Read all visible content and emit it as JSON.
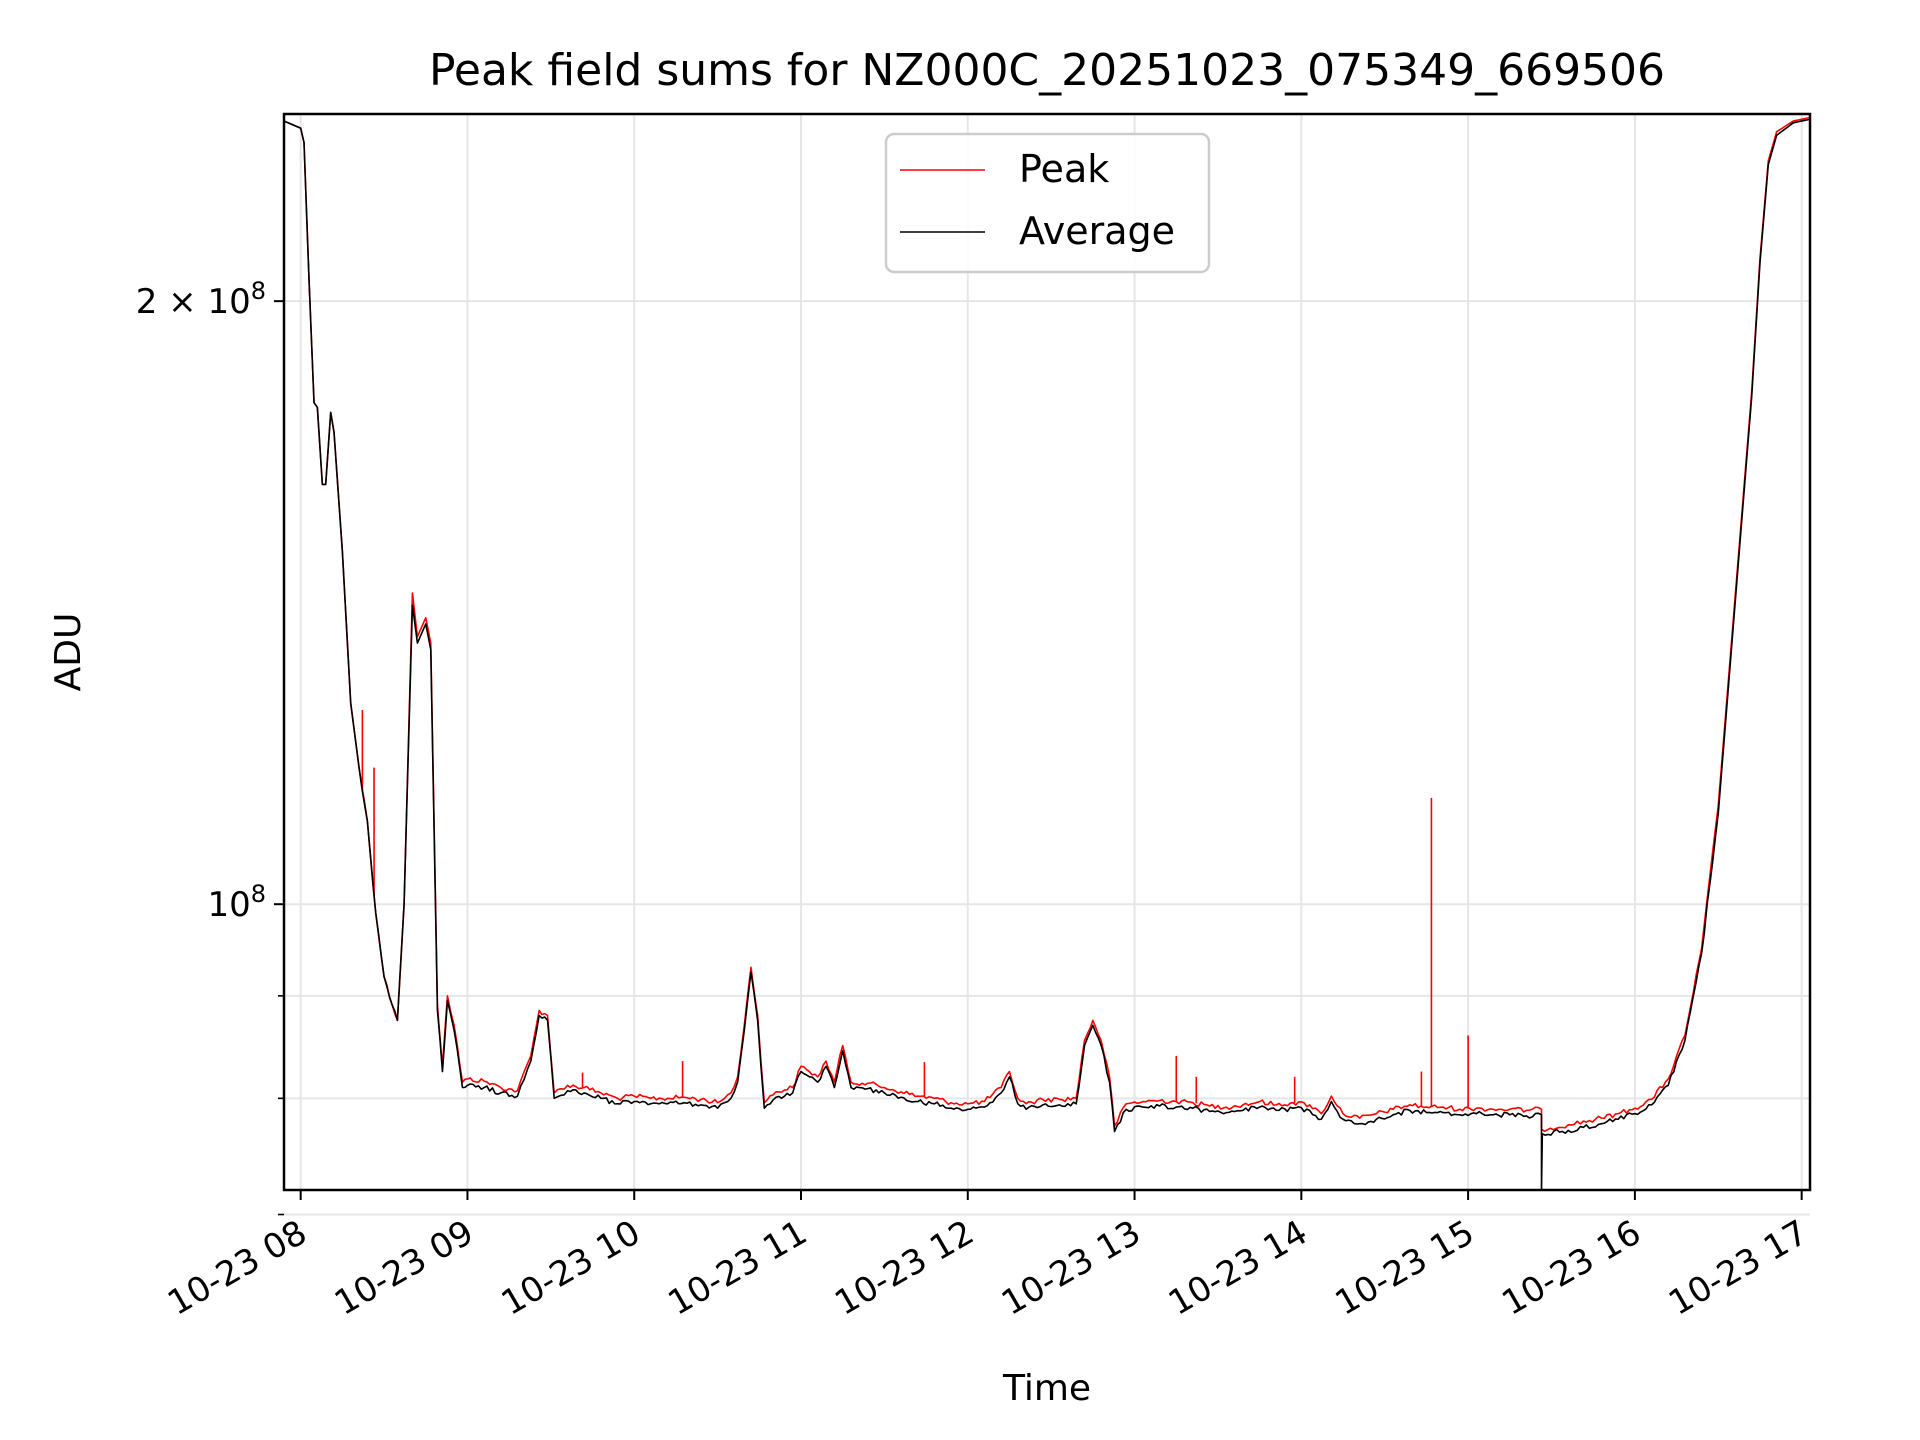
{
  "chart_data": {
    "type": "line",
    "title": "Peak field sums for NZ000C_20251023_075349_669506",
    "xlabel": "Time",
    "ylabel": "ADU",
    "yscale": "log",
    "ylim": [
      72000000,
      248000000
    ],
    "xlim": [
      7.9,
      17.05
    ],
    "grid": true,
    "legend_position": "top-center",
    "x_units": "hours on 2025-10-23",
    "x_ticks": [
      {
        "value": 8,
        "label": "10-23 08"
      },
      {
        "value": 9,
        "label": "10-23 09"
      },
      {
        "value": 10,
        "label": "10-23 10"
      },
      {
        "value": 11,
        "label": "10-23 11"
      },
      {
        "value": 12,
        "label": "10-23 12"
      },
      {
        "value": 13,
        "label": "10-23 13"
      },
      {
        "value": 14,
        "label": "10-23 14"
      },
      {
        "value": 15,
        "label": "10-23 15"
      },
      {
        "value": 16,
        "label": "10-23 16"
      },
      {
        "value": 17,
        "label": "10-23 17"
      }
    ],
    "y_major_ticks": [
      {
        "value": 100000000,
        "mantissa": "",
        "exp": "8"
      },
      {
        "value": 200000000,
        "mantissa": "2 × ",
        "exp": "8"
      }
    ],
    "y_minor_ticks": [
      70000000,
      80000000,
      90000000
    ],
    "series": [
      {
        "name": "Peak",
        "color": "#ff0000",
        "points": [
          [
            7.9,
            246000000
          ],
          [
            8.0,
            244000000
          ],
          [
            8.02,
            240000000
          ],
          [
            8.05,
            205000000
          ],
          [
            8.08,
            178000000
          ],
          [
            8.1,
            177000000
          ],
          [
            8.13,
            162000000
          ],
          [
            8.15,
            162000000
          ],
          [
            8.18,
            176000000
          ],
          [
            8.2,
            172000000
          ],
          [
            8.25,
            150000000
          ],
          [
            8.3,
            126000000
          ],
          [
            8.35,
            117000000
          ],
          [
            8.4,
            110000000
          ],
          [
            8.45,
            99000000
          ],
          [
            8.5,
            92000000
          ],
          [
            8.55,
            89000000
          ],
          [
            8.58,
            87500000
          ],
          [
            8.62,
            100000000
          ],
          [
            8.67,
            143000000
          ],
          [
            8.7,
            136000000
          ],
          [
            8.75,
            139000000
          ],
          [
            8.78,
            135000000
          ],
          [
            8.82,
            89000000
          ],
          [
            8.85,
            83000000
          ],
          [
            8.88,
            90000000
          ],
          [
            8.92,
            87000000
          ],
          [
            8.97,
            81500000
          ],
          [
            9.0,
            81800000
          ],
          [
            9.1,
            81600000
          ],
          [
            9.2,
            81000000
          ],
          [
            9.3,
            80700000
          ],
          [
            9.38,
            84000000
          ],
          [
            9.43,
            88500000
          ],
          [
            9.48,
            88000000
          ],
          [
            9.52,
            80500000
          ],
          [
            9.6,
            81200000
          ],
          [
            9.7,
            81000000
          ],
          [
            9.8,
            80500000
          ],
          [
            9.9,
            80000000
          ],
          [
            10.0,
            80200000
          ],
          [
            10.1,
            80000000
          ],
          [
            10.2,
            80000000
          ],
          [
            10.3,
            80100000
          ],
          [
            10.4,
            79900000
          ],
          [
            10.5,
            79600000
          ],
          [
            10.58,
            80500000
          ],
          [
            10.62,
            82000000
          ],
          [
            10.66,
            87000000
          ],
          [
            10.7,
            93000000
          ],
          [
            10.74,
            88000000
          ],
          [
            10.78,
            79600000
          ],
          [
            10.85,
            80600000
          ],
          [
            10.95,
            81000000
          ],
          [
            11.0,
            83000000
          ],
          [
            11.05,
            82500000
          ],
          [
            11.1,
            82000000
          ],
          [
            11.15,
            83500000
          ],
          [
            11.2,
            81500000
          ],
          [
            11.25,
            85000000
          ],
          [
            11.3,
            81500000
          ],
          [
            11.4,
            81400000
          ],
          [
            11.5,
            81000000
          ],
          [
            11.6,
            80600000
          ],
          [
            11.7,
            80200000
          ],
          [
            11.8,
            80000000
          ],
          [
            11.9,
            79600000
          ],
          [
            12.0,
            79500000
          ],
          [
            12.1,
            79700000
          ],
          [
            12.2,
            81000000
          ],
          [
            12.25,
            82500000
          ],
          [
            12.3,
            80000000
          ],
          [
            12.35,
            79500000
          ],
          [
            12.45,
            79900000
          ],
          [
            12.55,
            79900000
          ],
          [
            12.65,
            80000000
          ],
          [
            12.7,
            85500000
          ],
          [
            12.75,
            87500000
          ],
          [
            12.8,
            85500000
          ],
          [
            12.85,
            82000000
          ],
          [
            12.88,
            77500000
          ],
          [
            12.95,
            79500000
          ],
          [
            13.05,
            79700000
          ],
          [
            13.15,
            79800000
          ],
          [
            13.25,
            79700000
          ],
          [
            13.35,
            79600000
          ],
          [
            13.45,
            79300000
          ],
          [
            13.55,
            79200000
          ],
          [
            13.65,
            79400000
          ],
          [
            13.75,
            79700000
          ],
          [
            13.85,
            79400000
          ],
          [
            13.95,
            79600000
          ],
          [
            14.05,
            79400000
          ],
          [
            14.12,
            78600000
          ],
          [
            14.18,
            80200000
          ],
          [
            14.25,
            78600000
          ],
          [
            14.35,
            78200000
          ],
          [
            14.45,
            78600000
          ],
          [
            14.55,
            79000000
          ],
          [
            14.65,
            79400000
          ],
          [
            14.75,
            79200000
          ],
          [
            14.85,
            79200000
          ],
          [
            14.95,
            79000000
          ],
          [
            15.05,
            79100000
          ],
          [
            15.15,
            79000000
          ],
          [
            15.25,
            79000000
          ],
          [
            15.35,
            78900000
          ],
          [
            15.44,
            79000000
          ],
          [
            15.44,
            77200000
          ],
          [
            15.6,
            77600000
          ],
          [
            15.8,
            78200000
          ],
          [
            15.9,
            78600000
          ],
          [
            16.0,
            79100000
          ],
          [
            16.1,
            79900000
          ],
          [
            16.2,
            81800000
          ],
          [
            16.3,
            86000000
          ],
          [
            16.4,
            95000000
          ],
          [
            16.5,
            112000000
          ],
          [
            16.6,
            142000000
          ],
          [
            16.7,
            180000000
          ],
          [
            16.75,
            210000000
          ],
          [
            16.8,
            235000000
          ],
          [
            16.85,
            243000000
          ],
          [
            16.95,
            246000000
          ],
          [
            17.05,
            247000000
          ]
        ],
        "spikes": [
          [
            8.37,
            125000000
          ],
          [
            8.44,
            117000000
          ],
          [
            9.69,
            82400000
          ],
          [
            10.29,
            83500000
          ],
          [
            11.74,
            83400000
          ],
          [
            13.25,
            84000000
          ],
          [
            13.37,
            82000000
          ],
          [
            13.96,
            82000000
          ],
          [
            14.72,
            82500000
          ],
          [
            14.78,
            113000000
          ],
          [
            15.0,
            86000000
          ]
        ]
      },
      {
        "name": "Average",
        "color": "#000000",
        "points": [
          [
            7.9,
            246000000
          ],
          [
            8.0,
            244000000
          ],
          [
            8.02,
            240000000
          ],
          [
            8.05,
            205000000
          ],
          [
            8.08,
            178000000
          ],
          [
            8.1,
            177000000
          ],
          [
            8.13,
            162000000
          ],
          [
            8.15,
            162000000
          ],
          [
            8.18,
            176000000
          ],
          [
            8.2,
            172000000
          ],
          [
            8.25,
            150000000
          ],
          [
            8.3,
            126000000
          ],
          [
            8.35,
            117000000
          ],
          [
            8.4,
            110000000
          ],
          [
            8.45,
            99000000
          ],
          [
            8.5,
            92000000
          ],
          [
            8.55,
            89000000
          ],
          [
            8.58,
            87500000
          ],
          [
            8.62,
            100000000
          ],
          [
            8.67,
            141000000
          ],
          [
            8.7,
            135000000
          ],
          [
            8.75,
            138000000
          ],
          [
            8.78,
            134000000
          ],
          [
            8.82,
            88500000
          ],
          [
            8.85,
            82500000
          ],
          [
            8.88,
            89500000
          ],
          [
            8.92,
            86500000
          ],
          [
            8.97,
            81000000
          ],
          [
            9.0,
            81200000
          ],
          [
            9.1,
            81000000
          ],
          [
            9.2,
            80500000
          ],
          [
            9.3,
            80200000
          ],
          [
            9.38,
            83500000
          ],
          [
            9.43,
            88000000
          ],
          [
            9.48,
            87500000
          ],
          [
            9.52,
            80000000
          ],
          [
            9.6,
            80700000
          ],
          [
            9.7,
            80500000
          ],
          [
            9.8,
            80000000
          ],
          [
            9.9,
            79500000
          ],
          [
            10.0,
            79700000
          ],
          [
            10.1,
            79500000
          ],
          [
            10.2,
            79500000
          ],
          [
            10.3,
            79600000
          ],
          [
            10.4,
            79400000
          ],
          [
            10.5,
            79100000
          ],
          [
            10.58,
            80000000
          ],
          [
            10.62,
            81500000
          ],
          [
            10.66,
            86500000
          ],
          [
            10.7,
            92500000
          ],
          [
            10.74,
            87500000
          ],
          [
            10.78,
            79100000
          ],
          [
            10.85,
            80100000
          ],
          [
            10.95,
            80500000
          ],
          [
            11.0,
            82500000
          ],
          [
            11.05,
            82000000
          ],
          [
            11.1,
            81500000
          ],
          [
            11.15,
            83000000
          ],
          [
            11.2,
            81000000
          ],
          [
            11.25,
            84500000
          ],
          [
            11.3,
            81000000
          ],
          [
            11.4,
            80900000
          ],
          [
            11.5,
            80500000
          ],
          [
            11.6,
            80100000
          ],
          [
            11.7,
            79700000
          ],
          [
            11.8,
            79500000
          ],
          [
            11.9,
            79100000
          ],
          [
            12.0,
            79000000
          ],
          [
            12.1,
            79200000
          ],
          [
            12.2,
            80500000
          ],
          [
            12.25,
            82000000
          ],
          [
            12.3,
            79500000
          ],
          [
            12.35,
            79000000
          ],
          [
            12.45,
            79400000
          ],
          [
            12.55,
            79400000
          ],
          [
            12.65,
            79500000
          ],
          [
            12.7,
            85000000
          ],
          [
            12.75,
            87000000
          ],
          [
            12.8,
            85000000
          ],
          [
            12.85,
            81500000
          ],
          [
            12.88,
            77000000
          ],
          [
            12.95,
            79000000
          ],
          [
            13.05,
            79200000
          ],
          [
            13.15,
            79300000
          ],
          [
            13.25,
            79200000
          ],
          [
            13.35,
            79100000
          ],
          [
            13.45,
            78800000
          ],
          [
            13.55,
            78700000
          ],
          [
            13.65,
            78900000
          ],
          [
            13.75,
            79200000
          ],
          [
            13.85,
            78900000
          ],
          [
            13.95,
            79100000
          ],
          [
            14.05,
            78900000
          ],
          [
            14.12,
            78100000
          ],
          [
            14.18,
            79700000
          ],
          [
            14.25,
            78100000
          ],
          [
            14.35,
            77700000
          ],
          [
            14.45,
            78100000
          ],
          [
            14.55,
            78500000
          ],
          [
            14.65,
            78900000
          ],
          [
            14.75,
            78700000
          ],
          [
            14.85,
            78700000
          ],
          [
            14.95,
            78500000
          ],
          [
            15.05,
            78600000
          ],
          [
            15.15,
            78500000
          ],
          [
            15.25,
            78500000
          ],
          [
            15.35,
            78400000
          ],
          [
            15.44,
            78500000
          ],
          [
            15.44,
            72000000
          ],
          [
            15.445,
            76800000
          ],
          [
            15.6,
            77100000
          ],
          [
            15.8,
            77700000
          ],
          [
            15.9,
            78100000
          ],
          [
            16.0,
            78600000
          ],
          [
            16.1,
            79400000
          ],
          [
            16.2,
            81200000
          ],
          [
            16.3,
            85500000
          ],
          [
            16.4,
            94500000
          ],
          [
            16.5,
            111000000
          ],
          [
            16.6,
            141000000
          ],
          [
            16.7,
            179000000
          ],
          [
            16.75,
            209000000
          ],
          [
            16.8,
            234000000
          ],
          [
            16.85,
            242000000
          ],
          [
            16.95,
            245500000
          ],
          [
            17.05,
            246500000
          ]
        ],
        "spikes": []
      }
    ]
  }
}
